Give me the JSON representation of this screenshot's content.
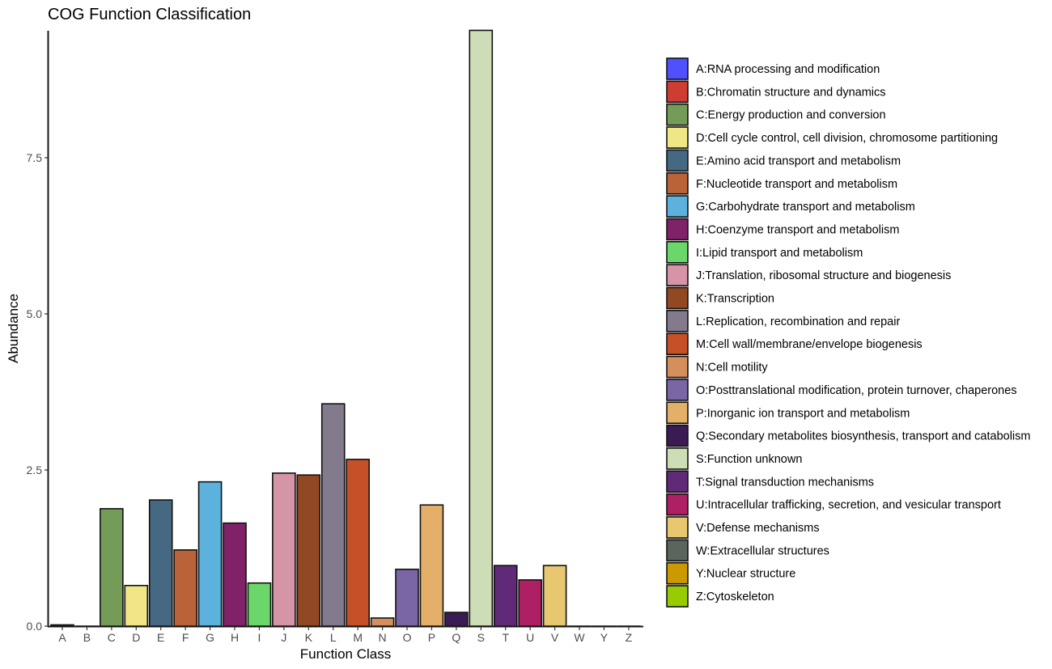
{
  "chart_data": {
    "type": "bar",
    "title": "COG Function Classification",
    "xlabel": "Function Class",
    "ylabel": "Abundance",
    "ylim": [
      0,
      9.55
    ],
    "yticks": [
      0.0,
      2.5,
      5.0,
      7.5
    ],
    "ytick_labels": [
      "0.0",
      "2.5",
      "5.0",
      "7.5"
    ],
    "grid": false,
    "legend_position": "right",
    "categories": [
      "A",
      "B",
      "C",
      "D",
      "E",
      "F",
      "G",
      "H",
      "I",
      "J",
      "K",
      "L",
      "M",
      "N",
      "O",
      "P",
      "Q",
      "S",
      "T",
      "U",
      "V",
      "W",
      "Y",
      "Z"
    ],
    "values": [
      0.02,
      0.0,
      1.88,
      0.65,
      2.02,
      1.22,
      2.31,
      1.65,
      0.69,
      2.45,
      2.42,
      3.56,
      2.67,
      0.13,
      0.91,
      1.94,
      0.22,
      9.54,
      0.97,
      0.74,
      0.97,
      0.0,
      0.0,
      0.0
    ],
    "colors": [
      "#5050FF",
      "#CE3D32",
      "#749B58",
      "#F0E685",
      "#466983",
      "#BA6338",
      "#5DB1DD",
      "#802268",
      "#6BD76B",
      "#D595A7",
      "#924822",
      "#837B8D",
      "#C75127",
      "#D58F5C",
      "#7A65A5",
      "#E4AF69",
      "#3B1B53",
      "#CDDEB7",
      "#612A79",
      "#AE1F63",
      "#E7C76F",
      "#5A655E",
      "#CC9900",
      "#99CC00"
    ],
    "legend": [
      {
        "key": "A",
        "label": "A:RNA processing and modification",
        "color": "#5050FF"
      },
      {
        "key": "B",
        "label": "B:Chromatin structure and dynamics",
        "color": "#CE3D32"
      },
      {
        "key": "C",
        "label": "C:Energy production and conversion",
        "color": "#749B58"
      },
      {
        "key": "D",
        "label": "D:Cell cycle control, cell division, chromosome partitioning",
        "color": "#F0E685"
      },
      {
        "key": "E",
        "label": "E:Amino acid transport and metabolism",
        "color": "#466983"
      },
      {
        "key": "F",
        "label": "F:Nucleotide transport and metabolism",
        "color": "#BA6338"
      },
      {
        "key": "G",
        "label": "G:Carbohydrate transport and metabolism",
        "color": "#5DB1DD"
      },
      {
        "key": "H",
        "label": "H:Coenzyme transport and metabolism",
        "color": "#802268"
      },
      {
        "key": "I",
        "label": "I:Lipid transport and metabolism",
        "color": "#6BD76B"
      },
      {
        "key": "J",
        "label": "J:Translation, ribosomal structure and biogenesis",
        "color": "#D595A7"
      },
      {
        "key": "K",
        "label": "K:Transcription",
        "color": "#924822"
      },
      {
        "key": "L",
        "label": "L:Replication, recombination and repair",
        "color": "#837B8D"
      },
      {
        "key": "M",
        "label": "M:Cell wall/membrane/envelope biogenesis",
        "color": "#C75127"
      },
      {
        "key": "N",
        "label": "N:Cell motility",
        "color": "#D58F5C"
      },
      {
        "key": "O",
        "label": "O:Posttranslational modification, protein turnover, chaperones",
        "color": "#7A65A5"
      },
      {
        "key": "P",
        "label": "P:Inorganic ion transport and metabolism",
        "color": "#E4AF69"
      },
      {
        "key": "Q",
        "label": "Q:Secondary metabolites biosynthesis, transport and catabolism",
        "color": "#3B1B53"
      },
      {
        "key": "S",
        "label": "S:Function unknown",
        "color": "#CDDEB7"
      },
      {
        "key": "T",
        "label": "T:Signal transduction mechanisms",
        "color": "#612A79"
      },
      {
        "key": "U",
        "label": "U:Intracellular trafficking, secretion, and vesicular transport",
        "color": "#AE1F63"
      },
      {
        "key": "V",
        "label": "V:Defense mechanisms",
        "color": "#E7C76F"
      },
      {
        "key": "W",
        "label": "W:Extracellular structures",
        "color": "#5A655E"
      },
      {
        "key": "Y",
        "label": "Y:Nuclear structure",
        "color": "#CC9900"
      },
      {
        "key": "Z",
        "label": "Z:Cytoskeleton",
        "color": "#99CC00"
      }
    ]
  }
}
